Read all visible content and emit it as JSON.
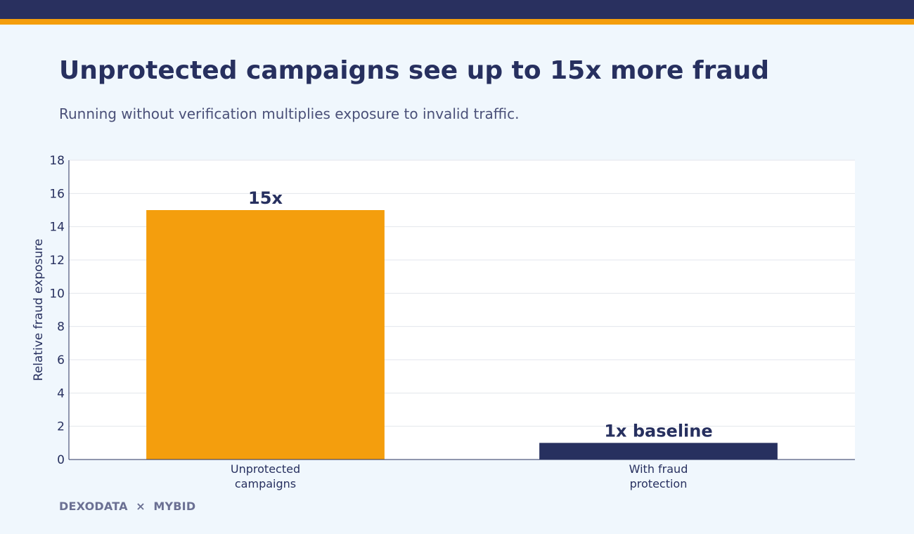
{
  "header": {
    "title": "Unprotected campaigns see up to 15x more fraud",
    "subtitle": "Running without verification multiplies exposure to invalid traffic."
  },
  "colors": {
    "header_bar": "#29305f",
    "accent": "#f49e0d",
    "navy": "#27305f",
    "background": "#f0f7fd"
  },
  "chart_data": {
    "type": "bar",
    "categories": [
      [
        "Unprotected",
        "campaigns"
      ],
      [
        "With fraud",
        "protection"
      ]
    ],
    "values": [
      15,
      1
    ],
    "bar_labels": [
      "15x",
      "1x baseline"
    ],
    "bar_colors": [
      "#f49e0d",
      "#27305f"
    ],
    "ylabel": "Relative fraud exposure",
    "ylim": [
      0,
      18
    ],
    "yticks": [
      0,
      2,
      4,
      6,
      8,
      10,
      12,
      14,
      16,
      18
    ],
    "grid": true
  },
  "footer": {
    "brand_left": "DEXODATA",
    "separator": "×",
    "brand_right": "MYBID"
  }
}
